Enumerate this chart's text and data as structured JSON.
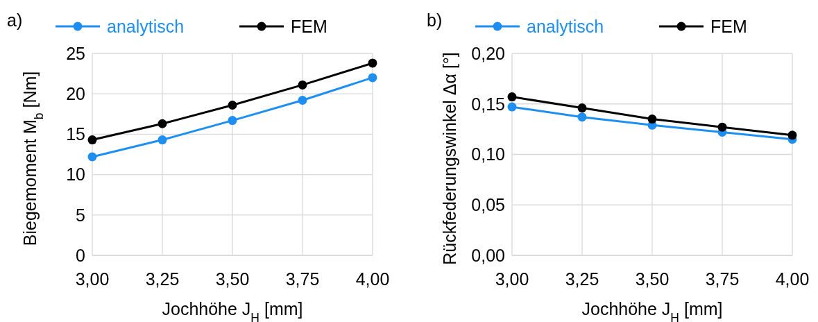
{
  "chart_data": [
    {
      "type": "line",
      "title": "a)",
      "xlabel": "Jochhöhe J$_{H}$ [mm]",
      "ylabel": "Biegemoment M$_{b}$ [Nm]",
      "x": [
        3,
        3.25,
        3.5,
        3.75,
        4
      ],
      "xlim": [
        3,
        4
      ],
      "xticks": [
        {
          "value": 3,
          "label": "3,00"
        },
        {
          "value": 3.25,
          "label": "3,25"
        },
        {
          "value": 3.5,
          "label": "3,50"
        },
        {
          "value": 3.75,
          "label": "3,75"
        },
        {
          "value": 4,
          "label": "4,00"
        }
      ],
      "ylim": [
        0,
        25
      ],
      "yticks": [
        0,
        5,
        10,
        15,
        20,
        25
      ],
      "grid": true,
      "legend": "top",
      "marker": "circle",
      "line_style": "solid",
      "series": [
        {
          "name": "analytisch",
          "color": "#1e8ff0",
          "values": [
            12.2,
            14.3,
            16.7,
            19.2,
            22.0
          ]
        },
        {
          "name": "FEM",
          "color": "#000000",
          "values": [
            14.3,
            16.3,
            18.6,
            21.1,
            23.8
          ]
        }
      ]
    },
    {
      "type": "line",
      "title": "b)",
      "xlabel": "Jochhöhe J$_{H}$ [mm]",
      "ylabel": "Rückfederungswinkel Δα [°]",
      "x": [
        3,
        3.25,
        3.5,
        3.75,
        4
      ],
      "xlim": [
        3,
        4
      ],
      "xticks": [
        {
          "value": 3,
          "label": "3,00"
        },
        {
          "value": 3.25,
          "label": "3,25"
        },
        {
          "value": 3.5,
          "label": "3,50"
        },
        {
          "value": 3.75,
          "label": "3,75"
        },
        {
          "value": 4,
          "label": "4,00"
        }
      ],
      "ylim": [
        0,
        0.2
      ],
      "yticks": [
        {
          "value": 0,
          "label": "0,00"
        },
        {
          "value": 0.05,
          "label": "0,05"
        },
        {
          "value": 0.1,
          "label": "0,10"
        },
        {
          "value": 0.15,
          "label": "0,15"
        },
        {
          "value": 0.2,
          "label": "0,20"
        }
      ],
      "grid": true,
      "legend": "top",
      "marker": "circle",
      "line_style": "solid",
      "series": [
        {
          "name": "analytisch",
          "color": "#1e8ff0",
          "values": [
            0.147,
            0.137,
            0.129,
            0.122,
            0.115
          ]
        },
        {
          "name": "FEM",
          "color": "#000000",
          "values": [
            0.157,
            0.146,
            0.135,
            0.127,
            0.119
          ]
        }
      ]
    }
  ]
}
